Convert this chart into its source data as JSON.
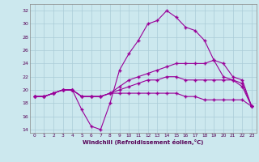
{
  "xlabel": "Windchill (Refroidissement éolien,°C)",
  "background_color": "#cce8ee",
  "grid_color": "#aaccd8",
  "line_color": "#990099",
  "x_hours": [
    0,
    1,
    2,
    3,
    4,
    5,
    6,
    7,
    8,
    9,
    10,
    11,
    12,
    13,
    14,
    15,
    16,
    17,
    18,
    19,
    20,
    21,
    22,
    23
  ],
  "series": {
    "temp": [
      19,
      19,
      19.5,
      20,
      20,
      17,
      14.5,
      14,
      18,
      23,
      25.5,
      27.5,
      30,
      30.5,
      32,
      31,
      29.5,
      29,
      27.5,
      24.5,
      22,
      21.5,
      20.5,
      17.5
    ],
    "windchill1": [
      19,
      19,
      19.5,
      20,
      20,
      19,
      19,
      19,
      19.5,
      20.5,
      21.5,
      22,
      22.5,
      23,
      23.5,
      24,
      24,
      24,
      24,
      24.5,
      24,
      22,
      21.5,
      17.5
    ],
    "windchill2": [
      19,
      19,
      19.5,
      20,
      20,
      19,
      19,
      19,
      19.5,
      20,
      20.5,
      21,
      21.5,
      21.5,
      22,
      22,
      21.5,
      21.5,
      21.5,
      21.5,
      21.5,
      21.5,
      21,
      17.5
    ],
    "windchill3": [
      19,
      19,
      19.5,
      20,
      20,
      19,
      19,
      19,
      19.5,
      19.5,
      19.5,
      19.5,
      19.5,
      19.5,
      19.5,
      19.5,
      19,
      19,
      18.5,
      18.5,
      18.5,
      18.5,
      18.5,
      17.5
    ]
  },
  "ylim": [
    13.5,
    33
  ],
  "yticks": [
    14,
    16,
    18,
    20,
    22,
    24,
    26,
    28,
    30,
    32
  ],
  "xlim": [
    -0.5,
    23.5
  ],
  "xticks": [
    0,
    1,
    2,
    3,
    4,
    5,
    6,
    7,
    8,
    9,
    10,
    11,
    12,
    13,
    14,
    15,
    16,
    17,
    18,
    19,
    20,
    21,
    22,
    23
  ]
}
